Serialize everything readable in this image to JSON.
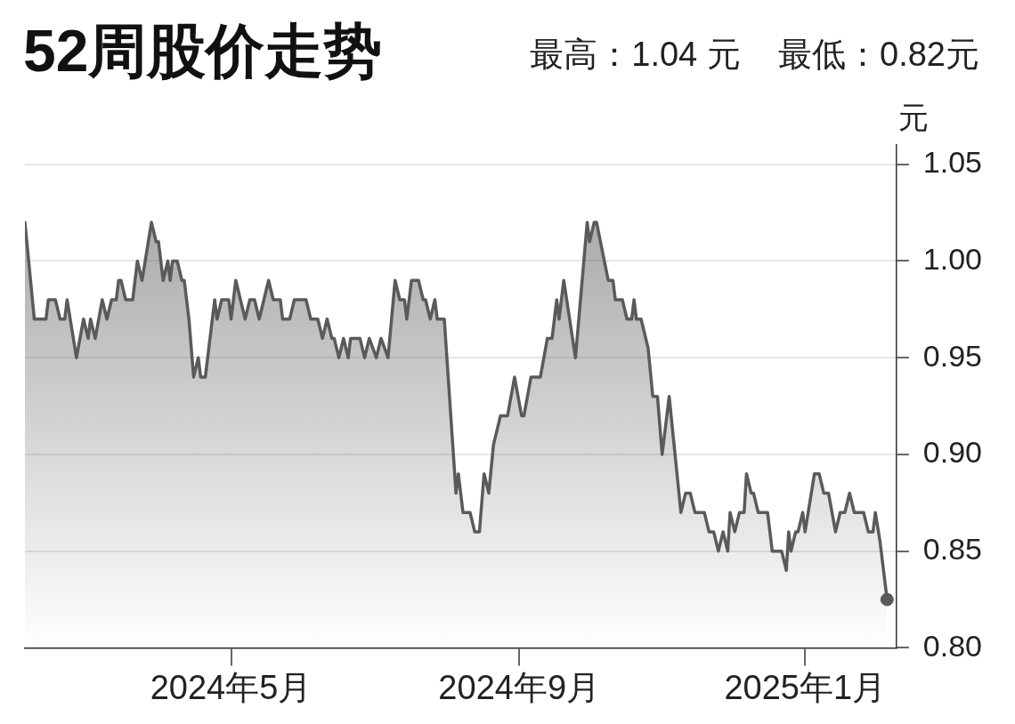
{
  "chart_data": {
    "type": "area",
    "title": "52周股价走势",
    "subtitle": "最高：1.04 元    最低：0.82元",
    "ylabel": "元",
    "xlim": [
      "2024-02-03",
      "2025-02-09"
    ],
    "xticks": [
      {
        "value": "2024-05-01",
        "label": "2024年5月"
      },
      {
        "value": "2024-09-01",
        "label": "2024年9月"
      },
      {
        "value": "2025-01-01",
        "label": "2025年1月"
      }
    ],
    "ylim": [
      0.8,
      1.06
    ],
    "yticks": [
      {
        "value": 0.8,
        "label": "0.80"
      },
      0.85,
      {
        "value": 0.9,
        "label": "0.90"
      },
      0.95,
      {
        "value": 1.0,
        "label": "1.00"
      },
      1.05
    ],
    "grid": "y",
    "marker": "none",
    "line_style": "solid",
    "series": [
      {
        "color": "#5a5a5a",
        "x": [
          "2024-02-03",
          "2024-02-07",
          "2024-02-12",
          "2024-02-13",
          "2024-02-16",
          "2024-02-18",
          "2024-02-20",
          "2024-02-21",
          "2024-02-25",
          "2024-02-28",
          "2024-03-01",
          "2024-03-02",
          "2024-03-04",
          "2024-03-07",
          "2024-03-09",
          "2024-03-11",
          "2024-03-13",
          "2024-03-14",
          "2024-03-15",
          "2024-03-17",
          "2024-03-20",
          "2024-03-22",
          "2024-03-24",
          "2024-03-28",
          "2024-03-30",
          "2024-03-31",
          "2024-04-02",
          "2024-04-04",
          "2024-04-05",
          "2024-04-06",
          "2024-04-08",
          "2024-04-10",
          "2024-04-11",
          "2024-04-13",
          "2024-04-15",
          "2024-04-17",
          "2024-04-18",
          "2024-04-20",
          "2024-04-24",
          "2024-04-25",
          "2024-04-27",
          "2024-04-30",
          "2024-05-01",
          "2024-05-03",
          "2024-05-05",
          "2024-05-07",
          "2024-05-09",
          "2024-05-11",
          "2024-05-13",
          "2024-05-15",
          "2024-05-17",
          "2024-05-19",
          "2024-05-22",
          "2024-05-23",
          "2024-05-26",
          "2024-05-28",
          "2024-06-02",
          "2024-06-04",
          "2024-06-07",
          "2024-06-09",
          "2024-06-11",
          "2024-06-13",
          "2024-06-14",
          "2024-06-16",
          "2024-06-18",
          "2024-06-20",
          "2024-06-21",
          "2024-06-25",
          "2024-06-27",
          "2024-06-29",
          "2024-07-02",
          "2024-07-04",
          "2024-07-07",
          "2024-07-10",
          "2024-07-12",
          "2024-07-14",
          "2024-07-15",
          "2024-07-17",
          "2024-07-20",
          "2024-07-22",
          "2024-07-23",
          "2024-07-25",
          "2024-07-27",
          "2024-07-28",
          "2024-07-31",
          "2024-08-05",
          "2024-08-06",
          "2024-08-08",
          "2024-08-11",
          "2024-08-13",
          "2024-08-15",
          "2024-08-17",
          "2024-08-19",
          "2024-08-21",
          "2024-08-24",
          "2024-08-27",
          "2024-08-30",
          "2024-09-02",
          "2024-09-03",
          "2024-09-06",
          "2024-09-10",
          "2024-09-13",
          "2024-09-15",
          "2024-09-17",
          "2024-09-18",
          "2024-09-20",
          "2024-09-25",
          "2024-09-30",
          "2024-10-01",
          "2024-10-03",
          "2024-10-04",
          "2024-10-09",
          "2024-10-11",
          "2024-10-12",
          "2024-10-15",
          "2024-10-17",
          "2024-10-19",
          "2024-10-20",
          "2024-10-21",
          "2024-10-23",
          "2024-10-26",
          "2024-10-28",
          "2024-10-30",
          "2024-11-01",
          "2024-11-04",
          "2024-11-09",
          "2024-11-11",
          "2024-11-13",
          "2024-11-15",
          "2024-11-19",
          "2024-11-21",
          "2024-11-23",
          "2024-11-25",
          "2024-11-27",
          "2024-11-29",
          "2024-11-30",
          "2024-12-02",
          "2024-12-04",
          "2024-12-06",
          "2024-12-07",
          "2024-12-09",
          "2024-12-10",
          "2024-12-12",
          "2024-12-16",
          "2024-12-18",
          "2024-12-22",
          "2024-12-24",
          "2024-12-25",
          "2024-12-26",
          "2024-12-28",
          "2024-12-29",
          "2024-12-31",
          "2025-01-01",
          "2025-01-05",
          "2025-01-07",
          "2025-01-09",
          "2025-01-11",
          "2025-01-14",
          "2025-01-16",
          "2025-01-18",
          "2025-01-20",
          "2025-01-22",
          "2025-01-26",
          "2025-01-28",
          "2025-01-30",
          "2025-01-31",
          "2025-02-02",
          "2025-02-05"
        ],
        "values": [
          1.02,
          0.97,
          0.97,
          0.98,
          0.98,
          0.97,
          0.97,
          0.98,
          0.95,
          0.97,
          0.96,
          0.97,
          0.96,
          0.98,
          0.97,
          0.98,
          0.98,
          0.99,
          0.99,
          0.98,
          0.98,
          1.0,
          0.99,
          1.02,
          1.01,
          1.01,
          0.99,
          1.0,
          0.99,
          1.0,
          1.0,
          0.99,
          0.99,
          0.97,
          0.94,
          0.95,
          0.94,
          0.94,
          0.98,
          0.97,
          0.98,
          0.98,
          0.97,
          0.99,
          0.98,
          0.97,
          0.98,
          0.98,
          0.97,
          0.98,
          0.99,
          0.98,
          0.98,
          0.97,
          0.97,
          0.98,
          0.98,
          0.97,
          0.97,
          0.96,
          0.97,
          0.96,
          0.96,
          0.95,
          0.96,
          0.95,
          0.96,
          0.96,
          0.95,
          0.96,
          0.95,
          0.96,
          0.95,
          0.99,
          0.98,
          0.98,
          0.97,
          0.99,
          0.99,
          0.98,
          0.98,
          0.97,
          0.98,
          0.97,
          0.97,
          0.88,
          0.89,
          0.87,
          0.87,
          0.86,
          0.86,
          0.89,
          0.88,
          0.905,
          0.92,
          0.92,
          0.94,
          0.92,
          0.92,
          0.94,
          0.94,
          0.96,
          0.96,
          0.98,
          0.97,
          0.99,
          0.95,
          1.02,
          1.01,
          1.02,
          1.02,
          0.99,
          0.99,
          0.98,
          0.98,
          0.97,
          0.97,
          0.98,
          0.97,
          0.97,
          0.955,
          0.93,
          0.93,
          0.9,
          0.93,
          0.87,
          0.88,
          0.88,
          0.87,
          0.87,
          0.86,
          0.86,
          0.85,
          0.86,
          0.85,
          0.87,
          0.86,
          0.87,
          0.87,
          0.89,
          0.88,
          0.88,
          0.87,
          0.87,
          0.85,
          0.85,
          0.84,
          0.86,
          0.85,
          0.86,
          0.86,
          0.87,
          0.86,
          0.89,
          0.89,
          0.88,
          0.88,
          0.86,
          0.87,
          0.87,
          0.88,
          0.87,
          0.87,
          0.86,
          0.86,
          0.87,
          0.855,
          0.825
        ]
      },
      {
        "type": "scatter",
        "marker": "circle",
        "color": "#5a5a5a",
        "x": [
          "2025-02-05"
        ],
        "values": [
          0.825
        ]
      }
    ]
  }
}
